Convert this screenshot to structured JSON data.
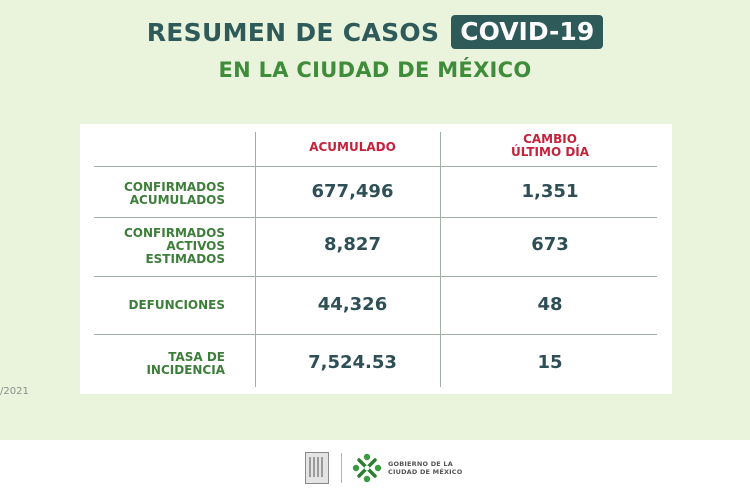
{
  "header": {
    "title": "RESUMEN DE CASOS",
    "badge": "COVID-19",
    "subtitle": "EN LA CIUDAD DE MÉXICO"
  },
  "table": {
    "col1_header": "ACUMULADO",
    "col2_header_line1": "CAMBIO",
    "col2_header_line2": "ÚLTIMO DÍA",
    "rows": [
      {
        "label_lines": [
          "CONFIRMADOS",
          "ACUMULADOS"
        ],
        "acumulado": "677,496",
        "cambio": "1,351"
      },
      {
        "label_lines": [
          "CONFIRMADOS",
          "ACTIVOS",
          "ESTIMADOS"
        ],
        "acumulado": "8,827",
        "cambio": "673"
      },
      {
        "label_lines": [
          "DEFUNCIONES"
        ],
        "acumulado": "44,326",
        "cambio": "48"
      },
      {
        "label_lines": [
          "TASA DE",
          "INCIDENCIA"
        ],
        "acumulado": "7,524.53",
        "cambio": "15"
      }
    ]
  },
  "date_fragment": "/2021",
  "footer": {
    "gov_line1": "GOBIERNO DE LA",
    "gov_line2": "CIUDAD DE MÉXICO",
    "logo_icon": "cdmx-logo-icon",
    "seal_icon": "seal-icon"
  },
  "colors": {
    "background": "#eaf3dc",
    "title": "#2e5b5a",
    "subtitle": "#3f8c3a",
    "header_red": "#c3223a",
    "row_label": "#3d7e3a",
    "value": "#2e4f56"
  }
}
